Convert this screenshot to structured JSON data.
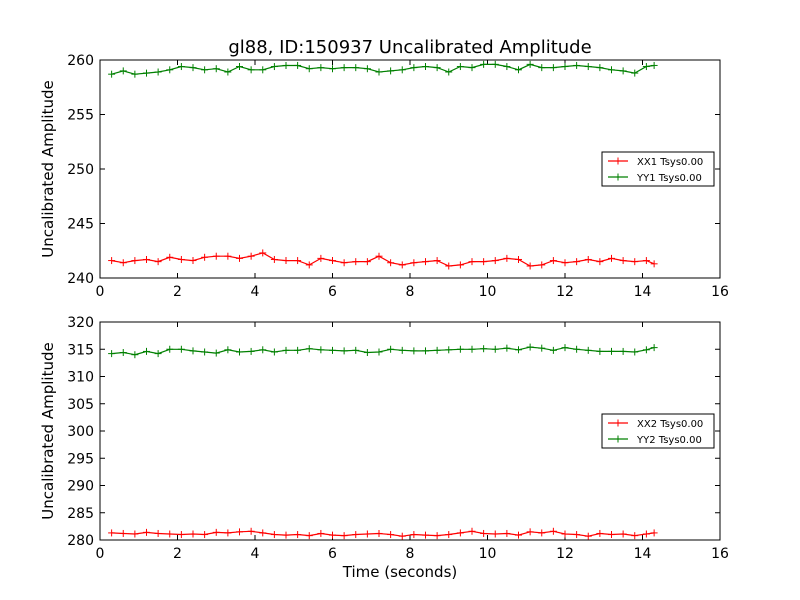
{
  "figure": {
    "title": "gl88, ID:150937 Uncalibrated Amplitude"
  },
  "chart_data": [
    {
      "type": "line",
      "title": "gl88, ID:150937 Uncalibrated Amplitude",
      "xlabel": "",
      "ylabel": "Uncalibrated Amplitude",
      "xlim": [
        0,
        16
      ],
      "ylim": [
        240,
        260
      ],
      "xticks": [
        0,
        2,
        4,
        6,
        8,
        10,
        12,
        14,
        16
      ],
      "yticks": [
        240,
        245,
        250,
        255,
        260
      ],
      "xtick_labels": [
        "0",
        "2",
        "4",
        "6",
        "8",
        "10",
        "12",
        "14",
        "16"
      ],
      "ytick_labels": [
        "240",
        "245",
        "250",
        "255",
        "260"
      ],
      "grid": false,
      "legend_position": "center-right",
      "x": [
        0.3,
        0.6,
        0.9,
        1.2,
        1.5,
        1.8,
        2.1,
        2.4,
        2.7,
        3.0,
        3.3,
        3.6,
        3.9,
        4.2,
        4.5,
        4.8,
        5.1,
        5.4,
        5.7,
        6.0,
        6.3,
        6.6,
        6.9,
        7.2,
        7.5,
        7.8,
        8.1,
        8.4,
        8.7,
        9.0,
        9.3,
        9.6,
        9.9,
        10.2,
        10.5,
        10.8,
        11.1,
        11.4,
        11.7,
        12.0,
        12.3,
        12.6,
        12.9,
        13.2,
        13.5,
        13.8,
        14.1,
        14.3
      ],
      "series": [
        {
          "name": "XX1 Tsys0.00",
          "color": "#ff0000",
          "values": [
            241.6,
            241.4,
            241.6,
            241.7,
            241.5,
            241.9,
            241.7,
            241.6,
            241.9,
            242.0,
            242.0,
            241.8,
            242.0,
            242.3,
            241.7,
            241.6,
            241.6,
            241.2,
            241.8,
            241.6,
            241.4,
            241.5,
            241.5,
            242.0,
            241.4,
            241.2,
            241.4,
            241.5,
            241.6,
            241.1,
            241.2,
            241.5,
            241.5,
            241.6,
            241.8,
            241.7,
            241.1,
            241.2,
            241.6,
            241.4,
            241.5,
            241.7,
            241.5,
            241.8,
            241.6,
            241.5,
            241.6,
            241.3
          ]
        },
        {
          "name": "YY1 Tsys0.00",
          "color": "#008000",
          "values": [
            258.7,
            259.0,
            258.7,
            258.8,
            258.9,
            259.1,
            259.4,
            259.3,
            259.1,
            259.2,
            258.9,
            259.4,
            259.1,
            259.1,
            259.4,
            259.5,
            259.5,
            259.2,
            259.3,
            259.2,
            259.3,
            259.3,
            259.2,
            258.9,
            259.0,
            259.1,
            259.3,
            259.4,
            259.3,
            258.9,
            259.4,
            259.3,
            259.6,
            259.6,
            259.4,
            259.1,
            259.6,
            259.3,
            259.3,
            259.4,
            259.5,
            259.4,
            259.3,
            259.1,
            259.0,
            258.8,
            259.4,
            259.5
          ]
        }
      ]
    },
    {
      "type": "line",
      "title": "",
      "xlabel": "Time (seconds)",
      "ylabel": "Uncalibrated Amplitude",
      "xlim": [
        0,
        16
      ],
      "ylim": [
        280,
        320
      ],
      "xticks": [
        0,
        2,
        4,
        6,
        8,
        10,
        12,
        14,
        16
      ],
      "yticks": [
        280,
        285,
        290,
        295,
        300,
        305,
        310,
        315,
        320
      ],
      "xtick_labels": [
        "0",
        "2",
        "4",
        "6",
        "8",
        "10",
        "12",
        "14",
        "16"
      ],
      "ytick_labels": [
        "280",
        "285",
        "290",
        "295",
        "300",
        "305",
        "310",
        "315",
        "320"
      ],
      "grid": false,
      "legend_position": "center-right",
      "x": [
        0.3,
        0.6,
        0.9,
        1.2,
        1.5,
        1.8,
        2.1,
        2.4,
        2.7,
        3.0,
        3.3,
        3.6,
        3.9,
        4.2,
        4.5,
        4.8,
        5.1,
        5.4,
        5.7,
        6.0,
        6.3,
        6.6,
        6.9,
        7.2,
        7.5,
        7.8,
        8.1,
        8.4,
        8.7,
        9.0,
        9.3,
        9.6,
        9.9,
        10.2,
        10.5,
        10.8,
        11.1,
        11.4,
        11.7,
        12.0,
        12.3,
        12.6,
        12.9,
        13.2,
        13.5,
        13.8,
        14.1,
        14.3
      ],
      "series": [
        {
          "name": "XX2 Tsys0.00",
          "color": "#ff0000",
          "values": [
            281.3,
            281.2,
            281.1,
            281.4,
            281.2,
            281.1,
            281.0,
            281.1,
            281.0,
            281.4,
            281.3,
            281.5,
            281.6,
            281.3,
            281.0,
            280.9,
            281.0,
            280.8,
            281.2,
            280.9,
            280.8,
            281.0,
            281.1,
            281.2,
            281.0,
            280.7,
            281.0,
            280.9,
            280.8,
            281.0,
            281.3,
            281.6,
            281.2,
            281.1,
            281.2,
            280.9,
            281.5,
            281.3,
            281.6,
            281.1,
            281.0,
            280.7,
            281.2,
            281.0,
            281.1,
            280.8,
            281.1,
            281.3
          ]
        },
        {
          "name": "YY2 Tsys0.00",
          "color": "#008000",
          "values": [
            314.2,
            314.4,
            314.0,
            314.6,
            314.2,
            315.0,
            315.0,
            314.7,
            314.5,
            314.3,
            314.9,
            314.5,
            314.6,
            314.9,
            314.5,
            314.8,
            314.8,
            315.1,
            314.9,
            314.8,
            314.7,
            314.8,
            314.4,
            314.5,
            315.0,
            314.8,
            314.7,
            314.7,
            314.8,
            314.9,
            315.0,
            315.0,
            315.1,
            315.0,
            315.2,
            314.9,
            315.4,
            315.2,
            314.8,
            315.3,
            315.0,
            314.8,
            314.6,
            314.6,
            314.6,
            314.5,
            314.9,
            315.3
          ]
        }
      ]
    }
  ]
}
